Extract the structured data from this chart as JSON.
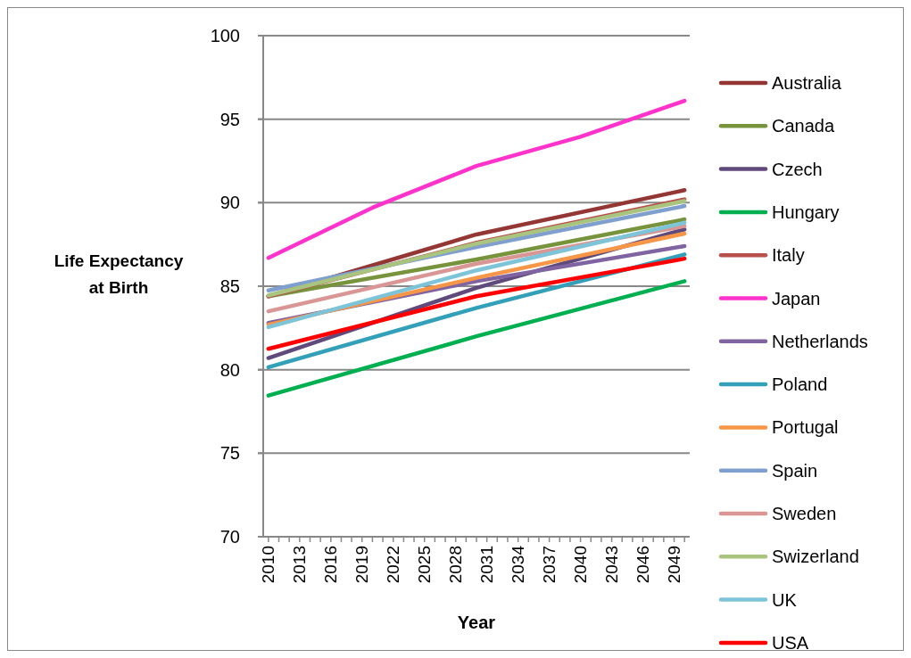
{
  "chart_data": {
    "type": "line",
    "xlabel": "Year",
    "ylabel": "Life Expectancy at Birth",
    "xlim": [
      2009.5,
      2050.5
    ],
    "xticks": [
      2010,
      {
        "value": 2011,
        "label": null
      },
      {
        "value": 2012,
        "label": null
      },
      2013,
      {
        "value": 2014,
        "label": null
      },
      {
        "value": 2015,
        "label": null
      },
      2016,
      {
        "value": 2017,
        "label": null
      },
      {
        "value": 2018,
        "label": null
      },
      2019,
      {
        "value": 2020,
        "label": null
      },
      {
        "value": 2021,
        "label": null
      },
      2022,
      {
        "value": 2023,
        "label": null
      },
      {
        "value": 2024,
        "label": null
      },
      2025,
      {
        "value": 2026,
        "label": null
      },
      {
        "value": 2027,
        "label": null
      },
      2028,
      {
        "value": 2029,
        "label": null
      },
      {
        "value": 2030,
        "label": null
      },
      2031,
      {
        "value": 2032,
        "label": null
      },
      {
        "value": 2033,
        "label": null
      },
      2034,
      {
        "value": 2035,
        "label": null
      },
      {
        "value": 2036,
        "label": null
      },
      2037,
      {
        "value": 2038,
        "label": null
      },
      {
        "value": 2039,
        "label": null
      },
      2040,
      {
        "value": 2041,
        "label": null
      },
      {
        "value": 2042,
        "label": null
      },
      2043,
      {
        "value": 2044,
        "label": null
      },
      {
        "value": 2045,
        "label": null
      },
      2046,
      {
        "value": 2047,
        "label": null
      },
      {
        "value": 2048,
        "label": null
      },
      2049,
      {
        "value": 2050,
        "label": null
      }
    ],
    "ylim": [
      70,
      100
    ],
    "yticks": [
      70,
      75,
      80,
      85,
      90,
      95,
      100
    ],
    "grid": "y",
    "legend": "right",
    "marker": "none",
    "line_style": "solid",
    "series": [
      {
        "name": "Australia",
        "color": "#943634",
        "x": [
          2010,
          2030,
          2050
        ],
        "values": [
          84.4,
          88.1,
          90.75
        ]
      },
      {
        "name": "Canada",
        "color": "#77933c",
        "x": [
          2010,
          2030,
          2050
        ],
        "values": [
          84.4,
          86.6,
          89.0
        ]
      },
      {
        "name": "Czech",
        "color": "#604a7b",
        "x": [
          2010,
          2030,
          2050
        ],
        "values": [
          80.7,
          84.9,
          88.4
        ]
      },
      {
        "name": "Hungary",
        "color": "#00b050",
        "x": [
          2010,
          2030,
          2050
        ],
        "values": [
          78.45,
          82.0,
          85.3
        ]
      },
      {
        "name": "Italy",
        "color": "#b8504b",
        "x": [
          2010,
          2030,
          2050
        ],
        "values": [
          84.4,
          87.6,
          90.2
        ]
      },
      {
        "name": "Japan",
        "color": "#ff33cc",
        "x": [
          2010,
          2020,
          2030,
          2040,
          2050
        ],
        "values": [
          86.7,
          89.7,
          92.2,
          93.95,
          96.1
        ]
      },
      {
        "name": "Netherlands",
        "color": "#8064a2",
        "x": [
          2010,
          2030,
          2050
        ],
        "values": [
          82.8,
          85.3,
          87.4
        ]
      },
      {
        "name": "Poland",
        "color": "#31a0b8",
        "x": [
          2010,
          2030,
          2050
        ],
        "values": [
          80.15,
          83.7,
          86.9
        ]
      },
      {
        "name": "Portugal",
        "color": "#f79646",
        "x": [
          2010,
          2030,
          2050
        ],
        "values": [
          82.7,
          85.5,
          88.15
        ]
      },
      {
        "name": "Spain",
        "color": "#7f9fcf",
        "x": [
          2010,
          2030,
          2050
        ],
        "values": [
          84.75,
          87.35,
          89.8
        ]
      },
      {
        "name": "Sweden",
        "color": "#d99694",
        "x": [
          2010,
          2030,
          2050
        ],
        "values": [
          83.5,
          86.35,
          88.6
        ]
      },
      {
        "name": "Swizerland",
        "color": "#a9c47f",
        "x": [
          2010,
          2030,
          2050
        ],
        "values": [
          84.45,
          87.55,
          90.1
        ]
      },
      {
        "name": "UK",
        "color": "#7ec4d9",
        "x": [
          2010,
          2030,
          2050
        ],
        "values": [
          82.55,
          85.95,
          88.8
        ]
      },
      {
        "name": "USA",
        "color": "#ff0000",
        "x": [
          2010,
          2030,
          2050
        ],
        "values": [
          81.25,
          84.4,
          86.65
        ]
      }
    ]
  }
}
